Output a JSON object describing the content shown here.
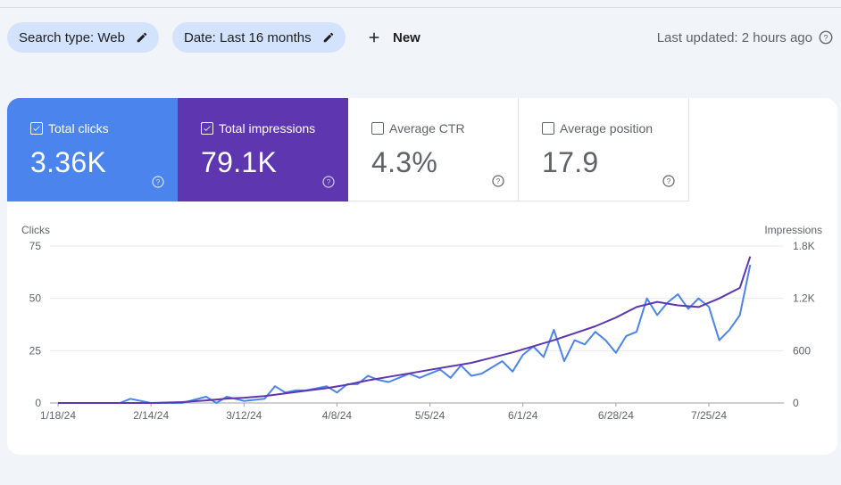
{
  "toolbar": {
    "search_type_label": "Search type: Web",
    "date_label": "Date: Last 16 months",
    "new_label": "New",
    "last_updated": "Last updated: 2 hours ago"
  },
  "metrics": [
    {
      "label": "Total clicks",
      "value": "3.36K",
      "checked": true,
      "color": "#4a84ec"
    },
    {
      "label": "Total impressions",
      "value": "79.1K",
      "checked": true,
      "color": "#5d36b0"
    },
    {
      "label": "Average CTR",
      "value": "4.3%",
      "checked": false
    },
    {
      "label": "Average position",
      "value": "17.9",
      "checked": false
    }
  ],
  "chart_data": {
    "type": "line",
    "left_axis_label": "Clicks",
    "right_axis_label": "Impressions",
    "left_ticks": [
      "75",
      "50",
      "25",
      "0"
    ],
    "right_ticks": [
      "1.8K",
      "1.2K",
      "600",
      "0"
    ],
    "ylim_left": [
      0,
      75
    ],
    "ylim_right": [
      0,
      1800
    ],
    "x_ticks": [
      "1/18/24",
      "2/14/24",
      "3/12/24",
      "4/8/24",
      "5/5/24",
      "6/1/24",
      "6/28/24",
      "7/25/24"
    ],
    "grid": true,
    "series": [
      {
        "name": "Clicks",
        "axis": "left",
        "color": "#4a84ec",
        "x": [
          "1/18/24",
          "1/27/24",
          "2/5/24",
          "2/8/24",
          "2/14/24",
          "2/23/24",
          "3/1/24",
          "3/4/24",
          "3/7/24",
          "3/12/24",
          "3/18/24",
          "3/21/24",
          "3/24/24",
          "3/27/24",
          "3/30/24",
          "4/2/24",
          "4/5/24",
          "4/8/24",
          "4/11/24",
          "4/14/24",
          "4/17/24",
          "4/20/24",
          "4/23/24",
          "4/26/24",
          "4/29/24",
          "5/2/24",
          "5/5/24",
          "5/8/24",
          "5/11/24",
          "5/14/24",
          "5/17/24",
          "5/20/24",
          "5/23/24",
          "5/26/24",
          "5/29/24",
          "6/1/24",
          "6/4/24",
          "6/7/24",
          "6/10/24",
          "6/13/24",
          "6/16/24",
          "6/19/24",
          "6/22/24",
          "6/25/24",
          "6/28/24",
          "7/1/24",
          "7/4/24",
          "7/7/24",
          "7/10/24",
          "7/13/24",
          "7/16/24",
          "7/19/24",
          "7/22/24",
          "7/25/24",
          "7/28/24",
          "7/31/24",
          "8/3/24",
          "8/6/24"
        ],
        "values": [
          0,
          0,
          0,
          2,
          0,
          0,
          3,
          0,
          3,
          1,
          2,
          8,
          5,
          6,
          6,
          7,
          8,
          5,
          9,
          9,
          13,
          11,
          10,
          12,
          14,
          12,
          14,
          16,
          12,
          18,
          13,
          14,
          17,
          20,
          15,
          23,
          27,
          22,
          35,
          20,
          30,
          28,
          34,
          30,
          24,
          32,
          34,
          50,
          42,
          48,
          52,
          45,
          50,
          46,
          30,
          35,
          42,
          66
        ]
      },
      {
        "name": "Impressions",
        "axis": "right",
        "color": "#5d36b0",
        "x": [
          "1/18/24",
          "1/27/24",
          "2/5/24",
          "2/14/24",
          "2/23/24",
          "3/1/24",
          "3/7/24",
          "3/12/24",
          "3/18/24",
          "3/24/24",
          "3/30/24",
          "4/5/24",
          "4/11/24",
          "4/17/24",
          "4/23/24",
          "4/29/24",
          "5/5/24",
          "5/11/24",
          "5/17/24",
          "5/23/24",
          "5/29/24",
          "6/4/24",
          "6/10/24",
          "6/16/24",
          "6/22/24",
          "6/28/24",
          "7/4/24",
          "7/10/24",
          "7/16/24",
          "7/22/24",
          "7/28/24",
          "8/3/24",
          "8/6/24"
        ],
        "values": [
          0,
          0,
          0,
          0,
          10,
          30,
          50,
          60,
          80,
          110,
          140,
          170,
          210,
          260,
          300,
          340,
          380,
          420,
          460,
          520,
          580,
          650,
          720,
          800,
          880,
          980,
          1100,
          1160,
          1120,
          1100,
          1200,
          1320,
          1680
        ]
      }
    ]
  }
}
